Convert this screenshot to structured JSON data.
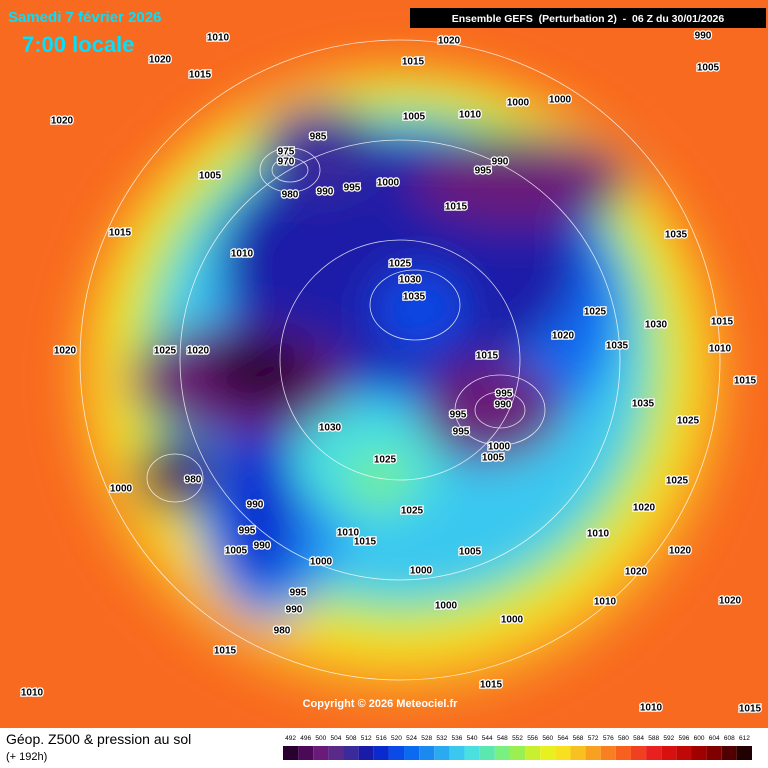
{
  "header": {
    "date": "Samedi 7 février 2026",
    "time": "7:00 locale",
    "model": "Ensemble GEFS  (Perturbation 2)  -  06 Z du 30/01/2026"
  },
  "copyright": "Copyright © 2026 Meteociel.fr",
  "footer": {
    "title": "Géop. Z500 & pression au sol",
    "lead": "(+ 192h)"
  },
  "legend": {
    "levels": [
      492,
      496,
      500,
      504,
      508,
      512,
      516,
      520,
      524,
      528,
      532,
      536,
      540,
      544,
      548,
      552,
      556,
      560,
      564,
      568,
      572,
      576,
      580,
      584,
      588,
      592,
      596,
      600,
      604,
      608,
      612
    ],
    "colors": [
      "#2a0030",
      "#4b0a55",
      "#6a1a78",
      "#5a2a8a",
      "#3a2a9a",
      "#1a1aa8",
      "#0a2ad0",
      "#0a4ae8",
      "#0a6af0",
      "#1a8af0",
      "#2aaaf0",
      "#3ac8f0",
      "#4ae0e0",
      "#5ae8b0",
      "#7af080",
      "#9af050",
      "#c8f030",
      "#e8f020",
      "#f8e020",
      "#f8c020",
      "#f8a020",
      "#f88020",
      "#f86020",
      "#f04020",
      "#e82020",
      "#d81010",
      "#c00808",
      "#a00000",
      "#800000",
      "#500000",
      "#200000"
    ]
  },
  "isobars": [
    "1010",
    "1020",
    "1015",
    "1020",
    "1005",
    "1015",
    "1010",
    "1020",
    "1025",
    "1020",
    "1000",
    "985",
    "975",
    "970",
    "980",
    "990",
    "995",
    "1000",
    "1005",
    "1010",
    "1000",
    "1000",
    "1015",
    "1020",
    "990",
    "1005",
    "990",
    "995",
    "1015",
    "1035",
    "1025",
    "1030",
    "1035",
    "1025",
    "1030",
    "1015",
    "1010",
    "1035",
    "1015",
    "1020",
    "1015",
    "995",
    "990",
    "995",
    "995",
    "1000",
    "1005",
    "1035",
    "1025",
    "1025",
    "1020",
    "1020",
    "1020",
    "1010",
    "1010",
    "1020",
    "1025",
    "1025",
    "1030",
    "990",
    "995",
    "990",
    "1005",
    "1010",
    "1015",
    "1005",
    "1000",
    "1000",
    "995",
    "990",
    "980",
    "1000",
    "1000",
    "1015",
    "1015",
    "1010",
    "1010",
    "1015",
    "980"
  ]
}
